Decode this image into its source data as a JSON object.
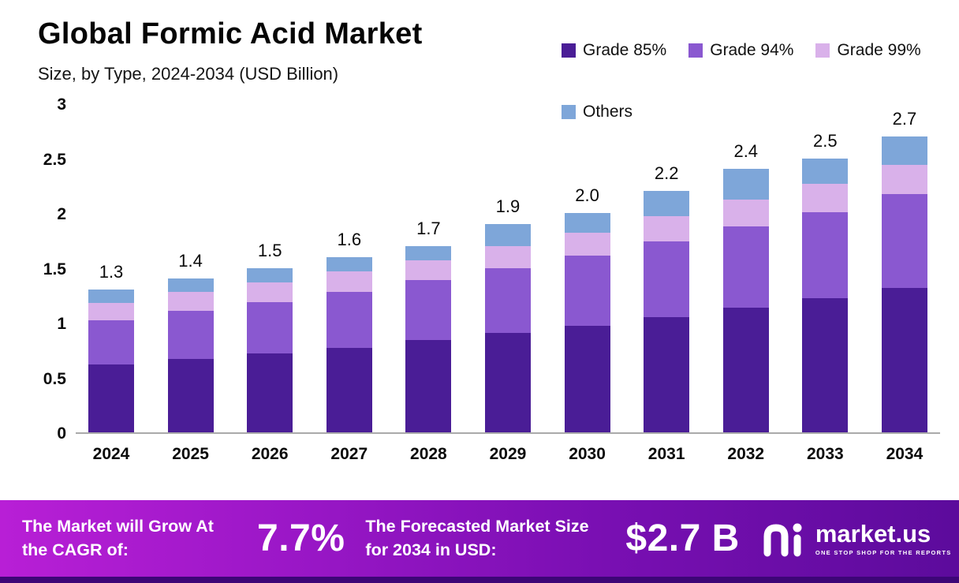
{
  "header": {
    "title": "Global Formic Acid Market",
    "subtitle": "Size, by Type, 2024-2034 (USD Billion)"
  },
  "banner": {
    "growth_label": "The Market will Grow At the CAGR of:",
    "cagr": "7.7%",
    "forecast_label": "The Forecasted Market Size for 2034 in USD:",
    "forecast_value": "$2.7 B",
    "brand": "market.us",
    "tagline": "ONE STOP SHOP FOR THE REPORTS"
  },
  "colors": {
    "grade_85": "#4a1d96",
    "grade_94": "#8a58d0",
    "grade_99": "#d9b1ea",
    "others": "#7ea6d9",
    "banner_gradient_start": "#b81fd6",
    "banner_gradient_end": "#5c0b9c",
    "bottom_strip": "#3d0677"
  },
  "chart_data": {
    "type": "bar",
    "stacked": true,
    "title": "Global Formic Acid Market",
    "subtitle": "Size, by Type, 2024-2034 (USD Billion)",
    "xlabel": "",
    "ylabel": "USD Billion",
    "ylim": [
      0,
      3
    ],
    "yticks": [
      0,
      0.5,
      1,
      1.5,
      2,
      2.5,
      3
    ],
    "ytick_labels": [
      "0",
      "0.5",
      "1",
      "1.5",
      "2",
      "2.5",
      "3"
    ],
    "grid": false,
    "legend_position": "top-right",
    "categories": [
      "2024",
      "2025",
      "2026",
      "2027",
      "2028",
      "2029",
      "2030",
      "2031",
      "2032",
      "2033",
      "2034"
    ],
    "series": [
      {
        "name": "Grade 85%",
        "color": "#4a1d96",
        "values": [
          0.62,
          0.67,
          0.72,
          0.77,
          0.84,
          0.91,
          0.97,
          1.05,
          1.14,
          1.22,
          1.32
        ]
      },
      {
        "name": "Grade 94%",
        "color": "#8a58d0",
        "values": [
          0.4,
          0.44,
          0.47,
          0.51,
          0.55,
          0.59,
          0.64,
          0.69,
          0.74,
          0.79,
          0.85
        ]
      },
      {
        "name": "Grade 99%",
        "color": "#d9b1ea",
        "values": [
          0.16,
          0.17,
          0.18,
          0.19,
          0.18,
          0.2,
          0.21,
          0.23,
          0.24,
          0.26,
          0.27
        ]
      },
      {
        "name": "Others",
        "color": "#7ea6d9",
        "values": [
          0.12,
          0.12,
          0.13,
          0.13,
          0.13,
          0.2,
          0.18,
          0.23,
          0.28,
          0.23,
          0.26
        ]
      }
    ],
    "totals": [
      "1.3",
      "1.4",
      "1.5",
      "1.6",
      "1.7",
      "1.9",
      "2.0",
      "2.2",
      "2.4",
      "2.5",
      "2.7"
    ]
  }
}
